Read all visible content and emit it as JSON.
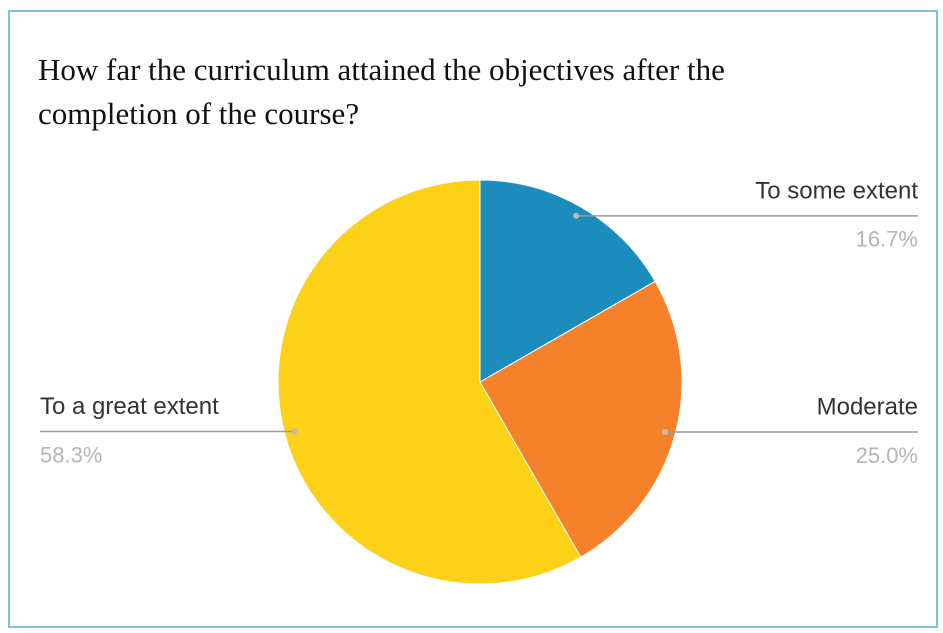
{
  "chart_data": {
    "type": "pie",
    "title": "How far the curriculum attained the objectives after the completion of the course?",
    "categories": [
      "To some extent",
      "Moderate",
      "To a great extent"
    ],
    "values": [
      16.7,
      25.0,
      58.3
    ],
    "value_labels": [
      "16.7%",
      "25.0%",
      "58.3%"
    ],
    "colors": [
      "#1b8cbb",
      "#f5822b",
      "#fcd117"
    ]
  }
}
